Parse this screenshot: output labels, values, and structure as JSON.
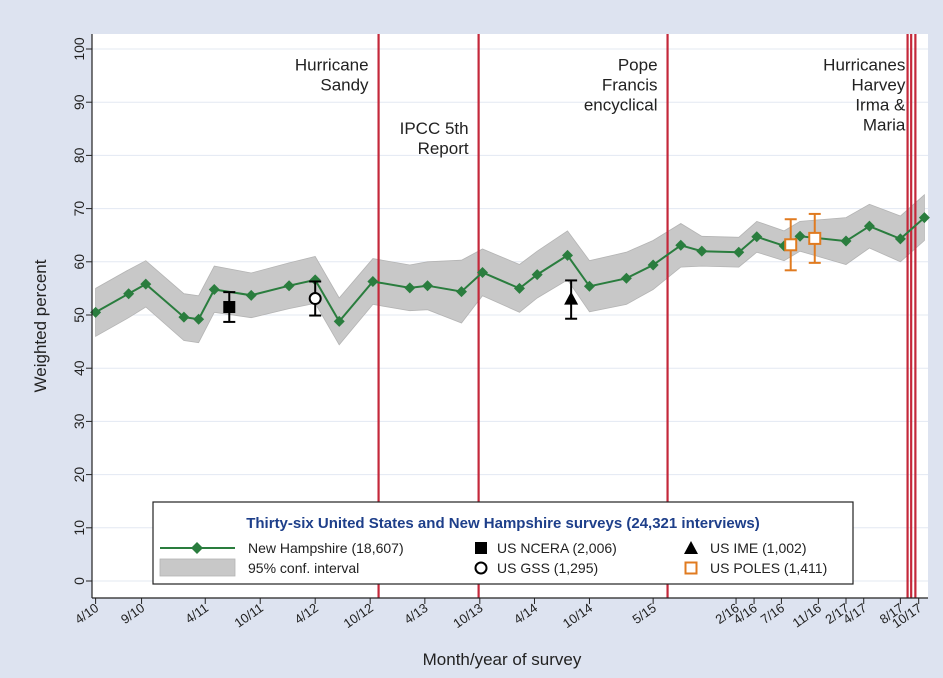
{
  "chart_data": {
    "type": "line",
    "title": "",
    "xlabel": "Month/year of survey",
    "ylabel": "Weighted percent",
    "ylim": [
      0,
      100
    ],
    "yticks": [
      0,
      10,
      20,
      30,
      40,
      50,
      60,
      70,
      80,
      90,
      100
    ],
    "xlim": [
      "2010-03-20",
      "2017-11-01"
    ],
    "xticks": [
      {
        "date": "2010-04-01",
        "label": "4/10"
      },
      {
        "date": "2010-09-01",
        "label": "9/10"
      },
      {
        "date": "2011-04-01",
        "label": "4/11"
      },
      {
        "date": "2011-10-01",
        "label": "10/11"
      },
      {
        "date": "2012-04-01",
        "label": "4/12"
      },
      {
        "date": "2012-10-01",
        "label": "10/12"
      },
      {
        "date": "2013-04-01",
        "label": "4/13"
      },
      {
        "date": "2013-10-01",
        "label": "10/13"
      },
      {
        "date": "2014-04-01",
        "label": "4/14"
      },
      {
        "date": "2014-10-01",
        "label": "10/14"
      },
      {
        "date": "2015-05-01",
        "label": "5/15"
      },
      {
        "date": "2016-02-01",
        "label": "2/16"
      },
      {
        "date": "2016-04-01",
        "label": "4/16"
      },
      {
        "date": "2016-07-01",
        "label": "7/16"
      },
      {
        "date": "2016-11-01",
        "label": "11/16"
      },
      {
        "date": "2017-02-01",
        "label": "2/17"
      },
      {
        "date": "2017-04-01",
        "label": "4/17"
      },
      {
        "date": "2017-08-01",
        "label": "8/17"
      },
      {
        "date": "2017-10-01",
        "label": "10/17"
      }
    ],
    "legend": {
      "title": "Thirty-six United States and New Hampshire surveys  (24,321 interviews)",
      "placement": "bottom",
      "entries": {
        "nh": "New Hampshire (18,607)",
        "ci": "95% conf. interval",
        "ncera": "US NCERA (2,006)",
        "gss": "US GSS (1,295)",
        "ime": "US IME (1,002)",
        "poles": "US POLES (1,411)"
      }
    },
    "series": [
      {
        "name": "New Hampshire (18,607)",
        "color": "#2a7d3e",
        "points": [
          {
            "x": "2010-04-01",
            "y": 50.5,
            "lo": 46.0,
            "hi": 55.0
          },
          {
            "x": "2010-07-20",
            "y": 54.0,
            "lo": 49.5,
            "hi": 58.5
          },
          {
            "x": "2010-09-15",
            "y": 55.8,
            "lo": 51.5,
            "hi": 60.2
          },
          {
            "x": "2011-01-20",
            "y": 49.6,
            "lo": 45.2,
            "hi": 54.0
          },
          {
            "x": "2011-03-10",
            "y": 49.2,
            "lo": 44.8,
            "hi": 53.6
          },
          {
            "x": "2011-05-01",
            "y": 54.8,
            "lo": 50.5,
            "hi": 59.2
          },
          {
            "x": "2011-09-01",
            "y": 53.7,
            "lo": 49.5,
            "hi": 57.9
          },
          {
            "x": "2012-01-05",
            "y": 55.5,
            "lo": 51.2,
            "hi": 59.8
          },
          {
            "x": "2012-04-01",
            "y": 56.6,
            "lo": 52.2,
            "hi": 61.0
          },
          {
            "x": "2012-06-20",
            "y": 48.8,
            "lo": 44.4,
            "hi": 53.2
          },
          {
            "x": "2012-10-10",
            "y": 56.3,
            "lo": 52.0,
            "hi": 60.6
          },
          {
            "x": "2013-02-10",
            "y": 55.1,
            "lo": 50.8,
            "hi": 59.4
          },
          {
            "x": "2013-04-10",
            "y": 55.5,
            "lo": 51.0,
            "hi": 60.0
          },
          {
            "x": "2013-08-01",
            "y": 54.4,
            "lo": 48.5,
            "hi": 60.3
          },
          {
            "x": "2013-10-10",
            "y": 58.0,
            "lo": 53.6,
            "hi": 62.4
          },
          {
            "x": "2014-02-10",
            "y": 55.0,
            "lo": 50.5,
            "hi": 59.5
          },
          {
            "x": "2014-04-10",
            "y": 57.6,
            "lo": 53.2,
            "hi": 62.0
          },
          {
            "x": "2014-07-20",
            "y": 61.2,
            "lo": 56.6,
            "hi": 65.8
          },
          {
            "x": "2014-10-01",
            "y": 55.4,
            "lo": 50.6,
            "hi": 60.2
          },
          {
            "x": "2015-02-01",
            "y": 56.9,
            "lo": 52.0,
            "hi": 61.8
          },
          {
            "x": "2015-05-01",
            "y": 59.4,
            "lo": 54.8,
            "hi": 64.0
          },
          {
            "x": "2015-08-01",
            "y": 63.1,
            "lo": 59.0,
            "hi": 67.2
          },
          {
            "x": "2015-10-10",
            "y": 62.0,
            "lo": 59.2,
            "hi": 64.8
          },
          {
            "x": "2016-02-10",
            "y": 61.8,
            "lo": 59.0,
            "hi": 64.6
          },
          {
            "x": "2016-04-10",
            "y": 64.7,
            "lo": 61.8,
            "hi": 67.6
          },
          {
            "x": "2016-07-10",
            "y": 63.0,
            "lo": 60.2,
            "hi": 65.8
          },
          {
            "x": "2016-09-01",
            "y": 64.8,
            "lo": 62.0,
            "hi": 67.6
          },
          {
            "x": "2017-02-01",
            "y": 63.9,
            "lo": 59.5,
            "hi": 68.3
          },
          {
            "x": "2017-04-20",
            "y": 66.7,
            "lo": 62.6,
            "hi": 70.8
          },
          {
            "x": "2017-08-01",
            "y": 64.3,
            "lo": 60.0,
            "hi": 68.6
          },
          {
            "x": "2017-10-20",
            "y": 68.3,
            "lo": 64.0,
            "hi": 72.6
          }
        ]
      }
    ],
    "us_surveys": [
      {
        "name": "US NCERA (2,006)",
        "marker": "square",
        "color": "#000000",
        "x": "2011-06-20",
        "y": 51.5,
        "lo": 48.7,
        "hi": 54.3
      },
      {
        "name": "US GSS (1,295)",
        "marker": "circle-open",
        "color": "#000000",
        "x": "2012-04-01",
        "y": 53.1,
        "lo": 49.9,
        "hi": 56.3
      },
      {
        "name": "US IME (1,002)",
        "marker": "triangle",
        "color": "#000000",
        "x": "2014-08-01",
        "y": 52.9,
        "lo": 49.3,
        "hi": 56.5
      },
      {
        "name": "US POLES (1,411)",
        "marker": "square-open",
        "color": "#e07b20",
        "x": "2016-08-01",
        "y": 63.2,
        "lo": 58.4,
        "hi": 68.0
      },
      {
        "name": "US POLES (1,411)",
        "marker": "square-open",
        "color": "#e07b20",
        "x": "2016-10-20",
        "y": 64.4,
        "lo": 59.8,
        "hi": 69.0
      }
    ],
    "events": [
      {
        "x": "2012-10-29",
        "label_lines": [
          "Hurricane",
          "Sandy"
        ],
        "label_side": "left",
        "label_y": 96
      },
      {
        "x": "2013-09-27",
        "label_lines": [
          "IPCC 5th",
          "Report"
        ],
        "label_side": "left",
        "label_y": 84
      },
      {
        "x": "2015-06-18",
        "label_lines": [
          "Pope",
          "Francis",
          "encyclical"
        ],
        "label_side": "left",
        "label_y": 96
      },
      {
        "x": "2017-08-25",
        "label_lines": [],
        "label_side": "left",
        "label_y": 96
      },
      {
        "x": "2017-09-06",
        "label_lines": [],
        "label_side": "left",
        "label_y": 96
      },
      {
        "x": "2017-09-20",
        "label_lines": [
          "Hurricanes",
          "Harvey",
          "Irma &",
          "Maria"
        ],
        "label_side": "left",
        "label_y": 96
      }
    ],
    "colors": {
      "nh_line": "#2a7d3e",
      "ci_band": "#c8c8c8",
      "event_line": "#c4283a",
      "poles": "#e07b20",
      "legend_title": "#1e3f8a"
    }
  }
}
